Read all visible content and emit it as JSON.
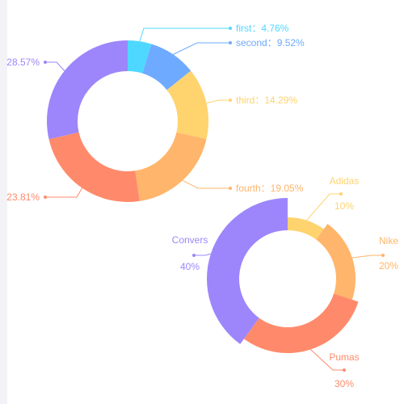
{
  "colors": {
    "cyan": "#4fd8ff",
    "blue": "#6eaaff",
    "yellow": "#ffd36e",
    "orange": "#ffb56b",
    "salmon": "#ff8a6b",
    "purple": "#9d86fb"
  },
  "chart_data": [
    {
      "type": "pie",
      "variant": "donut",
      "slices": [
        {
          "key": "first",
          "name": "first",
          "value": 4.76,
          "display": "4.76%",
          "color": "#4fd8ff"
        },
        {
          "key": "second",
          "name": "second",
          "value": 9.52,
          "display": "9.52%",
          "color": "#6eaaff"
        },
        {
          "key": "third",
          "name": "third",
          "value": 14.29,
          "display": "14.29%",
          "color": "#ffd36e"
        },
        {
          "key": "fourth",
          "name": "fourth",
          "value": 19.05,
          "display": "19.05%",
          "color": "#ffb56b"
        },
        {
          "key": "fifth",
          "name": "",
          "value": 23.81,
          "display": "23.81%",
          "color": "#ff8a6b"
        },
        {
          "key": "sixth",
          "name": "",
          "value": 28.57,
          "display": "28.57%",
          "color": "#9d86fb"
        }
      ],
      "label_separator": "："
    },
    {
      "type": "pie",
      "variant": "rose-donut",
      "slices": [
        {
          "key": "adidas",
          "name": "Adidas",
          "value": 10,
          "display": "10%",
          "color": "#ffd36e"
        },
        {
          "key": "nike",
          "name": "Nike",
          "value": 20,
          "display": "20%",
          "color": "#ffb56b"
        },
        {
          "key": "pumas",
          "name": "Pumas",
          "value": 30,
          "display": "30%",
          "color": "#ff8a6b"
        },
        {
          "key": "convers",
          "name": "Convers",
          "value": 40,
          "display": "40%",
          "color": "#9d86fb"
        }
      ]
    }
  ]
}
